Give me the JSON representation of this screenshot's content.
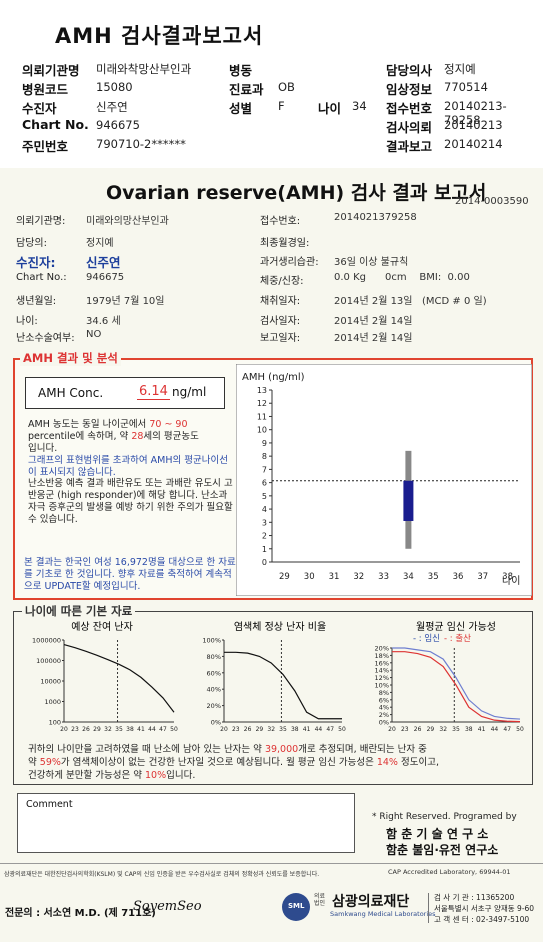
{
  "header": {
    "title": "AMH 검사결과보고서",
    "labels": {
      "inst": "의뢰기관명",
      "code": "병원코드",
      "name": "수진자",
      "chart": "Chart No.",
      "rrn": "주민번호",
      "ward": "병동",
      "dept": "진료과",
      "sex": "성별",
      "age": "나이",
      "doctor": "담당의사",
      "clin": "임상정보",
      "recv": "접수번호",
      "req": "검사의뢰",
      "rep": "결과보고"
    },
    "values": {
      "inst": "미래와착망산부인과",
      "code": "15080",
      "name": "신주연",
      "chart": "946675",
      "rrn": "790710-2******",
      "ward": "",
      "dept": "OB",
      "sex": "F",
      "age": "34",
      "doctor": "정지예",
      "clin": "770514",
      "recv": "20140213-79258",
      "req": "20140213",
      "rep": "20140214"
    }
  },
  "report": {
    "title": "Ovarian reserve(AMH) 검사 결과 보고서",
    "doc_no": "2014-0003590",
    "left": [
      {
        "label": "의뢰기관명:",
        "value": "미래와의망산부인과"
      },
      {
        "label": "담당의:",
        "value": "정지예"
      },
      {
        "label": "수진자:",
        "value": "신주연"
      },
      {
        "label": "Chart No.:",
        "value": "946675"
      },
      {
        "label": "생년월일:",
        "value": "1979년 7월 10일"
      },
      {
        "label": "나이:",
        "value": "34.6 세"
      },
      {
        "label": "난소수술여부:",
        "value": "NO"
      }
    ],
    "right": [
      {
        "label": "접수번호:",
        "value": "2014021379258"
      },
      {
        "label": "최종월경일:",
        "value": ""
      },
      {
        "label": "과거생리습관:",
        "value": "36일 이상 불규칙"
      },
      {
        "label": "체중/신장:",
        "value": "0.0 Kg      0cm    BMI:  0.00"
      },
      {
        "label": "채취일자:",
        "value": "2014년 2월 13일   (MCD # 0 일)"
      },
      {
        "label": "검사일자:",
        "value": "2014년 2월 14일"
      },
      {
        "label": "보고일자:",
        "value": "2014년 2월 14일"
      }
    ]
  },
  "analysis": {
    "section_title": "AMH 결과 및 분석",
    "conc_label": "AMH Conc.",
    "conc_value": "6.14",
    "conc_unit": "ng/ml",
    "p1_a": "AMH 농도는 동일 나이군에서",
    "p1_range": "70 ~ 90",
    "p1_b": "percentile에 속하며, 약",
    "p1_age": "28",
    "p1_c": "세의 평균농도",
    "p1_d": "입니다.",
    "p2": "그래프의 표현범위를 초과하여 AMH의 평균나이선이 표시되지 않습니다.",
    "p3": "난소반응 예측 결과 배란유도 또는 과배란 유도시 고반응군 (high responder)에 해당 합니다. 난소과자극 증후군의 발생을 예방 하기 위한 주의가 필요할 수 있습니다.",
    "p4": "본 결과는 한국인 여성 16,972명을 대상으로 한 자료를 기초로 한 것입니다. 향후 자료를 축적하여 계속적으로 UPDATE할 예정입니다."
  },
  "chart_data": [
    {
      "type": "bar",
      "title": "",
      "ylabel": "AMH (ng/ml)",
      "xlabel": "나이",
      "categories": [
        "29",
        "30",
        "31",
        "32",
        "33",
        "34",
        "35",
        "36",
        "37",
        "38"
      ],
      "ylim": [
        0,
        13
      ],
      "yticks": [
        "0",
        "1",
        "2",
        "3",
        "4",
        "5",
        "6",
        "7",
        "8",
        "9",
        "10",
        "11",
        "12",
        "13"
      ],
      "reference_line": 6.14,
      "range_bar": {
        "x": "34",
        "low": 1.0,
        "high": 8.4
      },
      "value_bar": {
        "x": "34",
        "low": 3.1,
        "high": 6.14
      }
    },
    {
      "type": "line",
      "title": "예상 잔여 난자",
      "y_log": true,
      "yticks": [
        "100",
        "1000",
        "10000",
        "100000",
        "1000000"
      ],
      "xticks": [
        "20",
        "23",
        "26",
        "29",
        "32",
        "35",
        "38",
        "41",
        "44",
        "47",
        "50"
      ],
      "x": [
        20,
        23,
        26,
        29,
        32,
        35,
        38,
        41,
        44,
        47,
        50
      ],
      "values": [
        600000,
        420000,
        280000,
        180000,
        110000,
        65000,
        35000,
        15000,
        5000,
        1500,
        300
      ]
    },
    {
      "type": "line",
      "title": "염색체 정상 난자 비율",
      "yticks": [
        "0%",
        "20%",
        "40%",
        "60%",
        "80%",
        "100%"
      ],
      "xticks": [
        "20",
        "23",
        "26",
        "29",
        "32",
        "35",
        "38",
        "41",
        "44",
        "47",
        "50"
      ],
      "x": [
        20,
        23,
        26,
        29,
        32,
        35,
        38,
        41,
        44,
        47,
        50
      ],
      "values": [
        85,
        85,
        84,
        80,
        72,
        58,
        38,
        12,
        4,
        4,
        4
      ]
    },
    {
      "type": "line",
      "title": "월평균 임신 가능성",
      "legend": [
        "임신",
        "출산"
      ],
      "yticks": [
        "0%",
        "2%",
        "4%",
        "6%",
        "8%",
        "10%",
        "12%",
        "14%",
        "16%",
        "18%",
        "20%"
      ],
      "xticks": [
        "20",
        "23",
        "26",
        "29",
        "32",
        "35",
        "38",
        "41",
        "44",
        "47",
        "50"
      ],
      "x": [
        20,
        23,
        26,
        29,
        32,
        35,
        38,
        41,
        44,
        47,
        50
      ],
      "series": [
        {
          "name": "임신",
          "values": [
            20,
            20,
            19.5,
            19,
            17,
            12,
            6,
            3,
            1.5,
            1,
            0.8
          ]
        },
        {
          "name": "출산",
          "values": [
            19,
            19,
            18.5,
            17.5,
            15,
            10,
            4,
            1.5,
            0.5,
            0.2,
            0.1
          ]
        }
      ]
    }
  ],
  "basic": {
    "section_title": "나이에 따른 기본 자료",
    "summary_a": "귀하의 나이만을 고려하였을 때 난소에 남아 있는 난자는 약",
    "eggs": "39,000",
    "summary_b": "개로 추정되며, 배란되는 난자 중",
    "summary_c": "약",
    "normal_pct": "59%",
    "summary_d": "가 염색체이상이 없는 건강한 난자일 것으로 예상됩니다. 월 평균 임신 가능성은",
    "preg_pct": "14%",
    "summary_e": "정도이고,",
    "summary_f": "건강하게 분만할 가능성은 약",
    "birth_pct": "10%",
    "summary_g": "입니다."
  },
  "comment": {
    "label": "Comment",
    "text": ""
  },
  "credits": {
    "rights": "* Right Reserved. Programed by",
    "org1": "함 춘  기 술  연 구 소",
    "org2": "함춘 불임·유전 연구소"
  },
  "footer": {
    "cert": "삼광의료재단은 대한진단검사의학회(KSLM) 및 CAP의 신임 인증을 받은 우수검사실로 검체의 정확성과 신뢰도를 보증합니다.",
    "cap": "CAP  Accredited  Laboratory,  69944-01",
    "specialist": "전문의 : 서소연 M.D. (제 711호)",
    "signature": "SoyemSeo",
    "foundation_small": "의료 법인",
    "foundation": "삼광의료재단",
    "foundation_en": "Samkwang Medical Laboratories",
    "reg": "검 사 기 관 : 11365200",
    "addr": "서울특별시 서초구 양재동 9-60",
    "tel": "고 객 센 터 : 02-3497-5100"
  }
}
